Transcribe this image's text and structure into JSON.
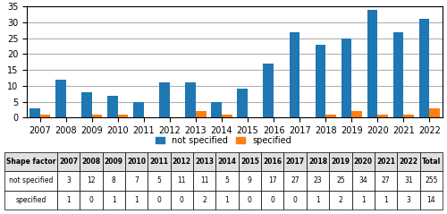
{
  "chart_data": {
    "type": "bar",
    "categories": [
      "2007",
      "2008",
      "2009",
      "2010",
      "2011",
      "2012",
      "2013",
      "2014",
      "2015",
      "2016",
      "2017",
      "2018",
      "2019",
      "2020",
      "2021",
      "2022"
    ],
    "series": [
      {
        "name": "not specified",
        "values": [
          3,
          12,
          8,
          7,
          5,
          11,
          11,
          5,
          9,
          17,
          27,
          23,
          25,
          34,
          27,
          31
        ]
      },
      {
        "name": "specified",
        "values": [
          1,
          0,
          1,
          1,
          0,
          0,
          2,
          1,
          0,
          0,
          0,
          1,
          2,
          1,
          1,
          3
        ]
      }
    ],
    "ylim": [
      0,
      35
    ],
    "yticks": [
      0,
      5,
      10,
      15,
      20,
      25,
      30,
      35
    ],
    "grid": true,
    "legend": "center",
    "table": {
      "header": [
        "Shape factor",
        "2007",
        "2008",
        "2009",
        "2010",
        "2011",
        "2012",
        "2013",
        "2014",
        "2015",
        "2016",
        "2017",
        "2018",
        "2019",
        "2020",
        "2021",
        "2022",
        "Total"
      ],
      "rows": [
        {
          "label": "not specified",
          "values": [
            3,
            12,
            8,
            7,
            5,
            11,
            11,
            5,
            9,
            17,
            27,
            23,
            25,
            34,
            27,
            31,
            255
          ]
        },
        {
          "label": "specified",
          "values": [
            1,
            0,
            1,
            1,
            0,
            0,
            2,
            1,
            0,
            0,
            0,
            1,
            2,
            1,
            1,
            3,
            14
          ]
        }
      ]
    }
  }
}
